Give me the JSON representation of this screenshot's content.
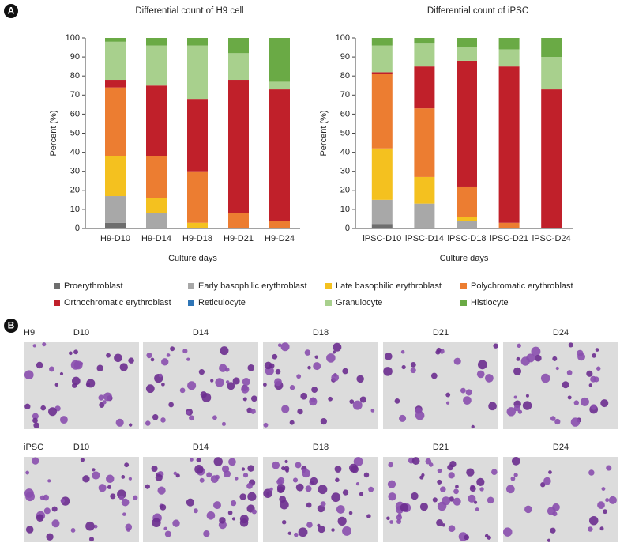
{
  "panel_label": "A",
  "legend": [
    {
      "name": "Proerythroblast",
      "color": "#6e6e6e"
    },
    {
      "name": "Early basophilic erythroblast",
      "color": "#a8a8a8"
    },
    {
      "name": "Late basophilic erythroblast",
      "color": "#f4c11f"
    },
    {
      "name": "Polychromatic erythroblast",
      "color": "#ec7d31"
    },
    {
      "name": "Orthochromatic erythroblast",
      "color": "#c0202a"
    },
    {
      "name": "Reticulocyte",
      "color": "#2e75b6"
    },
    {
      "name": "Granulocyte",
      "color": "#a8d08d"
    },
    {
      "name": "Histiocyte",
      "color": "#6aaa45"
    }
  ],
  "chart_data": [
    {
      "type": "stacked_bar",
      "title": "Differential count of H9 cell",
      "x_label": "Culture days",
      "y_label": "Percent (%)",
      "categories": [
        "H9-D10",
        "H9-D14",
        "H9-D18",
        "H9-D21",
        "H9-D24"
      ],
      "ylim": [
        0,
        100
      ],
      "yticks": [
        0,
        10,
        20,
        30,
        40,
        50,
        60,
        70,
        80,
        90,
        100
      ],
      "series": [
        {
          "values": [
            3,
            0,
            0,
            0,
            0
          ]
        },
        {
          "values": [
            14,
            8,
            0,
            0,
            0
          ]
        },
        {
          "values": [
            21,
            8,
            3,
            0,
            0
          ]
        },
        {
          "values": [
            36,
            22,
            27,
            8,
            4
          ]
        },
        {
          "values": [
            4,
            37,
            38,
            70,
            69
          ]
        },
        {
          "values": [
            0,
            0,
            0,
            0,
            0
          ]
        },
        {
          "values": [
            20,
            21,
            28,
            14,
            4
          ]
        },
        {
          "values": [
            2,
            4,
            4,
            8,
            23
          ]
        }
      ]
    },
    {
      "type": "stacked_bar",
      "title": "Differential count of iPSC",
      "x_label": "Culture days",
      "y_label": "Percent (%)",
      "categories": [
        "iPSC-D10",
        "iPSC-D14",
        "iPSC-D18",
        "iPSC-D21",
        "iPSC-D24"
      ],
      "ylim": [
        0,
        100
      ],
      "yticks": [
        0,
        10,
        20,
        30,
        40,
        50,
        60,
        70,
        80,
        90,
        100
      ],
      "series": [
        {
          "values": [
            2,
            0,
            0,
            0,
            0
          ]
        },
        {
          "values": [
            13,
            13,
            4,
            0,
            0
          ]
        },
        {
          "values": [
            27,
            14,
            2,
            0,
            0
          ]
        },
        {
          "values": [
            39,
            36,
            16,
            3,
            0
          ]
        },
        {
          "values": [
            1,
            22,
            66,
            82,
            73
          ]
        },
        {
          "values": [
            0,
            0,
            0,
            0,
            0
          ]
        },
        {
          "values": [
            14,
            12,
            7,
            9,
            17
          ]
        },
        {
          "values": [
            4,
            3,
            5,
            6,
            10
          ]
        }
      ]
    }
  ],
  "micrographs": {
    "panel_label": "B",
    "rows": [
      {
        "label": "H9",
        "days": [
          "D10",
          "D14",
          "D18",
          "D21",
          "D24"
        ]
      },
      {
        "label": "iPSC",
        "days": [
          "D10",
          "D14",
          "D18",
          "D21",
          "D24"
        ]
      }
    ]
  }
}
